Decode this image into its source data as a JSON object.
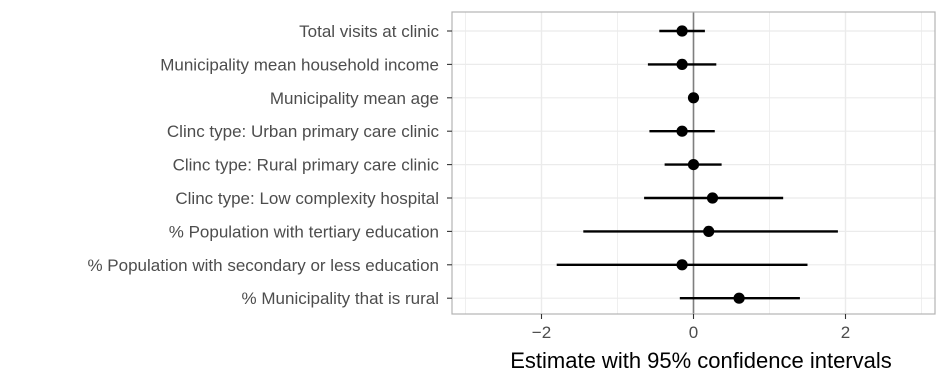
{
  "chart_data": {
    "type": "forest",
    "xlabel": "Estimate with 95% confidence intervals",
    "ylabel": "",
    "xlim": [
      -3.2,
      3.2
    ],
    "xticks": [
      -2,
      0,
      2
    ],
    "xtick_labels": [
      "−2",
      "0",
      "2"
    ],
    "reference_line_x": 0,
    "grid": true,
    "colors": {
      "point": "#000000",
      "gridline": "#ebebeb",
      "reference": "#7f7f7f",
      "frame": "#b3b3b3"
    },
    "categories": [
      "Total visits at clinic",
      "Municipality mean household income",
      "Municipality mean age",
      "Clinc type: Urban primary care clinic",
      "Clinc type: Rural primary care clinic",
      "Clinc type: Low complexity hospital",
      "% Population with tertiary education",
      "% Population with secondary or less education",
      "% Municipality that is rural"
    ],
    "estimates": [
      -0.15,
      -0.15,
      0.0,
      -0.15,
      0.0,
      0.25,
      0.2,
      -0.15,
      0.6
    ],
    "lower": [
      -0.45,
      -0.6,
      -0.05,
      -0.58,
      -0.38,
      -0.65,
      -1.45,
      -1.8,
      -0.18
    ],
    "upper": [
      0.15,
      0.3,
      0.05,
      0.28,
      0.37,
      1.18,
      1.9,
      1.5,
      1.4
    ]
  }
}
